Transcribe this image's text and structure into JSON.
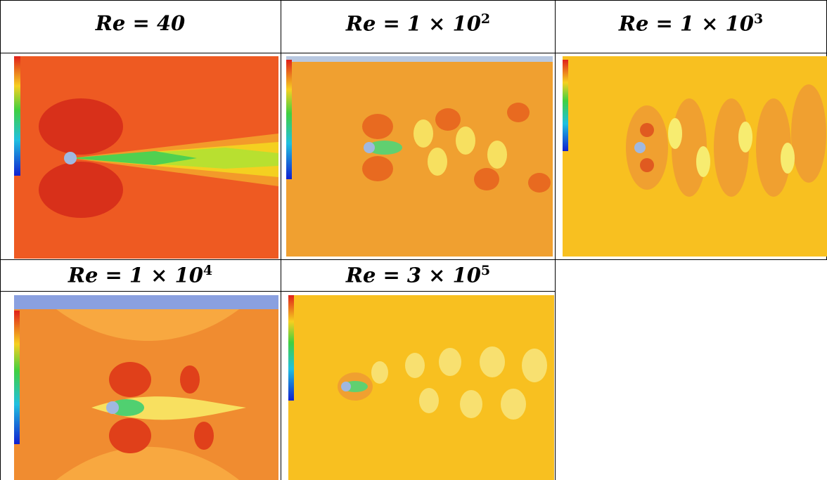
{
  "table": {
    "rows": [
      [
        {
          "label": "Re = 40"
        },
        {
          "label": "Re = 1 × 10",
          "exponent": "2"
        },
        {
          "label": "Re = 1 × 10",
          "exponent": "3"
        }
      ],
      [
        {
          "label": "Re = 1 × 10",
          "exponent": "4"
        },
        {
          "label": "Re = 3 × 10",
          "exponent": "5"
        }
      ]
    ]
  }
}
